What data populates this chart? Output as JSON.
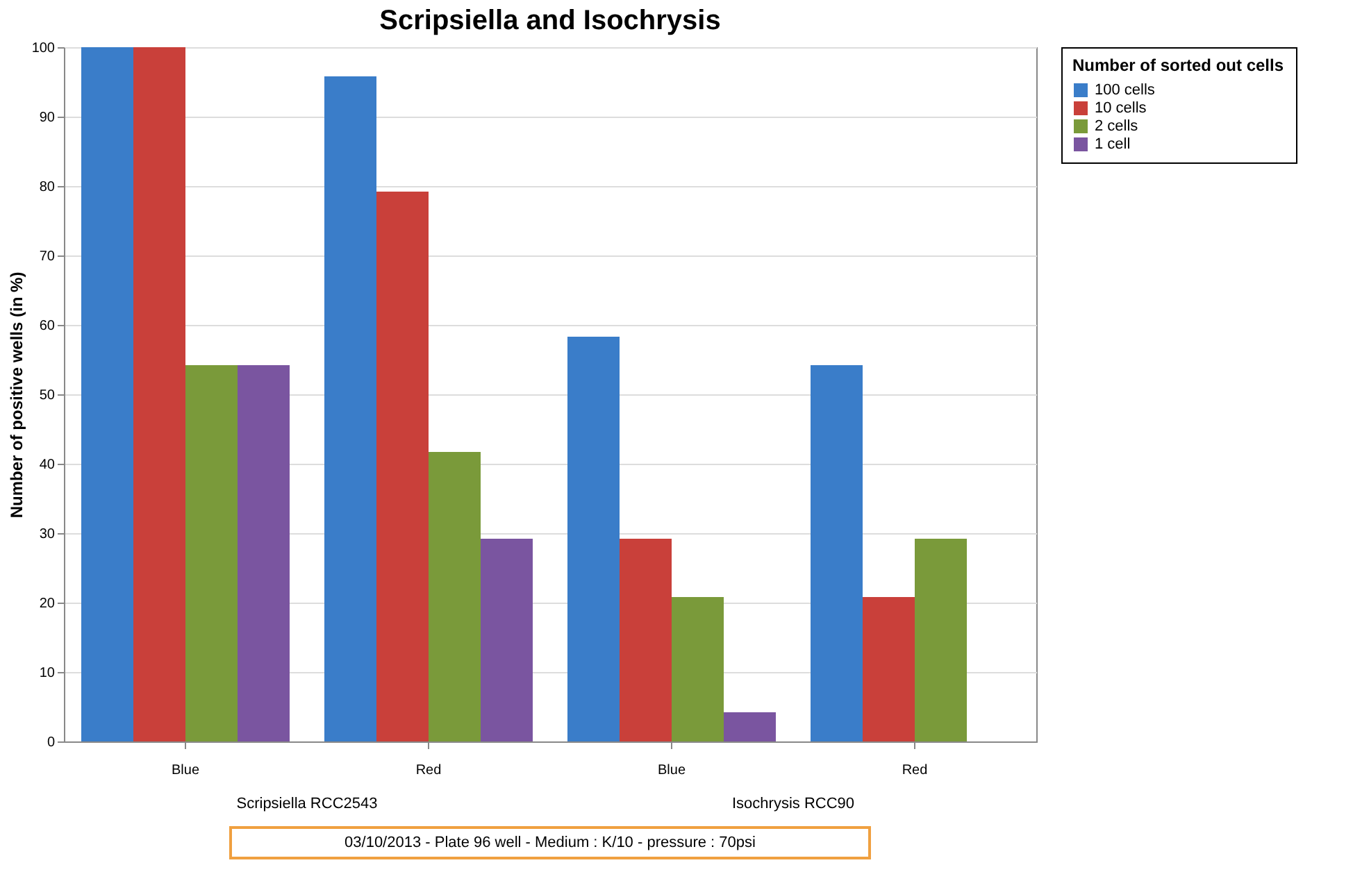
{
  "chart_data": {
    "type": "bar",
    "title": "Scripsiella and Isochrysis",
    "ylabel": "Number of positive wells (in %)",
    "legend_title": "Number of sorted out cells",
    "categories": [
      "Blue",
      "Red",
      "Blue",
      "Red"
    ],
    "series": [
      {
        "name": "100 cells",
        "color": "#3a7dc9",
        "values": [
          100,
          95.8,
          58.3,
          54.2
        ]
      },
      {
        "name": "10 cells",
        "color": "#c9403a",
        "values": [
          100,
          79.2,
          29.2,
          20.8
        ]
      },
      {
        "name": "2 cells",
        "color": "#7a9a3a",
        "values": [
          54.2,
          41.7,
          20.8,
          29.2
        ]
      },
      {
        "name": "1 cell",
        "color": "#7a55a0",
        "values": [
          54.2,
          29.2,
          4.2,
          null
        ]
      }
    ],
    "ylim": [
      0,
      100
    ],
    "yticks": [
      0,
      10,
      20,
      30,
      40,
      50,
      60,
      70,
      80,
      90,
      100
    ],
    "grid": "y",
    "legend": "right",
    "annotations": [
      "Scripsiella RCC2543",
      "Isochrysis RCC90",
      "03/10/2013 - Plate 96 well - Medium : K/10 - pressure : 70psi"
    ]
  }
}
